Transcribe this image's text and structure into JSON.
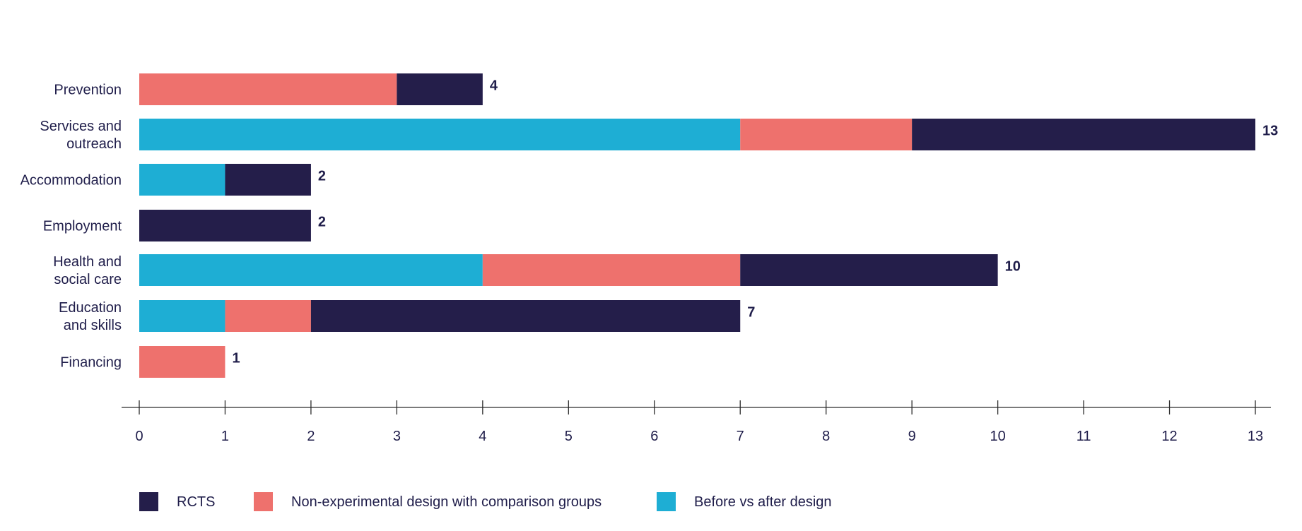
{
  "chart_data": {
    "type": "bar",
    "orientation": "horizontal",
    "stacked": true,
    "title": "",
    "xlabel": "",
    "ylabel": "",
    "xlim": [
      0,
      13
    ],
    "xticks": [
      0,
      1,
      2,
      3,
      4,
      5,
      6,
      7,
      8,
      9,
      10,
      11,
      12,
      13
    ],
    "categories": [
      [
        "Prevention"
      ],
      [
        "Services and",
        "outreach"
      ],
      [
        "Accommodation"
      ],
      [
        "Employment"
      ],
      [
        "Health and",
        "social care"
      ],
      [
        "Education",
        "and skills"
      ],
      [
        "Financing"
      ]
    ],
    "series": [
      {
        "name": "Before vs after design",
        "color": "#1eaed4",
        "values": [
          0,
          7,
          1,
          0,
          4,
          1,
          0
        ]
      },
      {
        "name": "Non-experimental design with comparison groups",
        "color": "#ee716d",
        "values": [
          3,
          2,
          0,
          0,
          3,
          1,
          1
        ]
      },
      {
        "name": "RCTS",
        "color": "#241e4a",
        "values": [
          1,
          4,
          1,
          2,
          3,
          5,
          0
        ]
      }
    ],
    "totals": [
      4,
      13,
      2,
      2,
      10,
      7,
      1
    ],
    "legend": {
      "position": "bottom-left",
      "order": [
        "RCTS",
        "Non-experimental design with comparison groups",
        "Before vs after design"
      ]
    },
    "grid": false
  }
}
